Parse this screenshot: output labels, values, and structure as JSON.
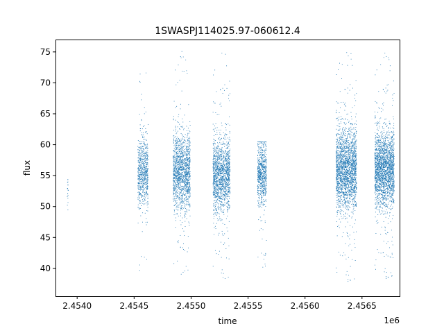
{
  "chart_data": {
    "type": "scatter",
    "title": "1SWASPJ114025.97-060612.4",
    "xlabel": "time",
    "ylabel": "flux",
    "x_offset_label": "1e6",
    "xlim": [
      2.45381,
      2.45683
    ],
    "ylim": [
      35.5,
      77.0
    ],
    "x_ticks": [
      2.454,
      2.4545,
      2.455,
      2.4555,
      2.456,
      2.4565
    ],
    "x_tick_labels": [
      "2.4540",
      "2.4545",
      "2.4550",
      "2.4555",
      "2.4560",
      "2.4565"
    ],
    "y_ticks": [
      40,
      45,
      50,
      55,
      60,
      65,
      70,
      75
    ],
    "y_tick_labels": [
      "40",
      "45",
      "50",
      "55",
      "60",
      "65",
      "70",
      "75"
    ],
    "grid": false,
    "marker_color": "#1f77b4",
    "observing_seasons": [
      {
        "x_start": 2.45391,
        "x_end": 2.45392,
        "y_center": 52.5,
        "y_spread": 1.6,
        "y_min": 49.5,
        "y_max": 54.4,
        "density": "very sparse"
      },
      {
        "x_start": 2.45453,
        "x_end": 2.45462,
        "y_center": 55.5,
        "y_spread": 2.8,
        "y_min": 38.5,
        "y_max": 72.5,
        "density": "medium"
      },
      {
        "x_start": 2.45484,
        "x_end": 2.45499,
        "y_center": 55.5,
        "y_spread": 3.0,
        "y_min": 39.0,
        "y_max": 75.2,
        "density": "dense"
      },
      {
        "x_start": 2.45519,
        "x_end": 2.45534,
        "y_center": 55.0,
        "y_spread": 3.0,
        "y_min": 37.8,
        "y_max": 75.3,
        "density": "dense"
      },
      {
        "x_start": 2.45558,
        "x_end": 2.45566,
        "y_center": 55.5,
        "y_spread": 2.6,
        "y_min": 40.0,
        "y_max": 60.5,
        "density": "medium"
      },
      {
        "x_start": 2.45627,
        "x_end": 2.45645,
        "y_center": 56.0,
        "y_spread": 3.3,
        "y_min": 37.5,
        "y_max": 75.4,
        "density": "very dense"
      },
      {
        "x_start": 2.45661,
        "x_end": 2.45678,
        "y_center": 56.0,
        "y_spread": 3.0,
        "y_min": 38.0,
        "y_max": 75.3,
        "density": "very dense"
      }
    ]
  }
}
